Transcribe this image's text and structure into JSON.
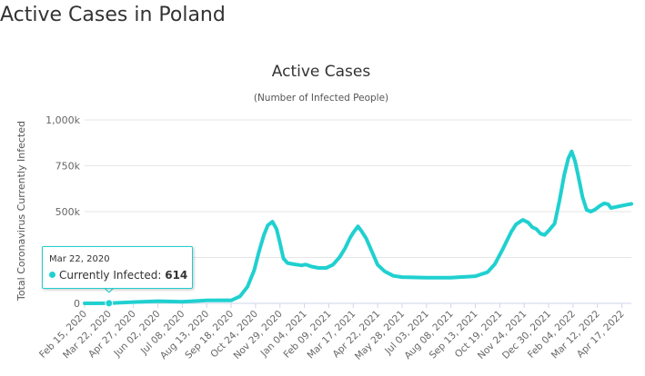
{
  "page": {
    "heading": "Active Cases in Poland"
  },
  "tooltip": {
    "date": "Mar 22, 2020",
    "series": "Currently Infected",
    "value": "614",
    "color": "#20d0d0"
  },
  "chart_data": {
    "type": "line",
    "title": "Active Cases",
    "subtitle": "(Number of Infected People)",
    "xlabel": "",
    "ylabel": "Total Coronavirus Currently Infected",
    "x_start": "2020-02-15",
    "x_end": "2022-05-01",
    "ylim": [
      0,
      1000000
    ],
    "y_ticks": [
      {
        "value": 0,
        "label": "0"
      },
      {
        "value": 250000,
        "label": "250k"
      },
      {
        "value": 500000,
        "label": "500k"
      },
      {
        "value": 750000,
        "label": "750k"
      },
      {
        "value": 1000000,
        "label": "1,000k"
      }
    ],
    "x_tick_labels": [
      {
        "date": "2020-02-15",
        "label": "Feb 15, 2020"
      },
      {
        "date": "2020-03-22",
        "label": "Mar 22, 2020"
      },
      {
        "date": "2020-04-27",
        "label": "Apr 27, 2020"
      },
      {
        "date": "2020-06-02",
        "label": "Jun 02, 2020"
      },
      {
        "date": "2020-07-08",
        "label": "Jul 08, 2020"
      },
      {
        "date": "2020-08-13",
        "label": "Aug 13, 2020"
      },
      {
        "date": "2020-09-18",
        "label": "Sep 18, 2020"
      },
      {
        "date": "2020-10-24",
        "label": "Oct 24, 2020"
      },
      {
        "date": "2020-11-29",
        "label": "Nov 29, 2020"
      },
      {
        "date": "2021-01-04",
        "label": "Jan 04, 2021"
      },
      {
        "date": "2021-02-09",
        "label": "Feb 09, 2021"
      },
      {
        "date": "2021-03-17",
        "label": "Mar 17, 2021"
      },
      {
        "date": "2021-04-22",
        "label": "Apr 22, 2021"
      },
      {
        "date": "2021-05-28",
        "label": "May 28, 2021"
      },
      {
        "date": "2021-07-03",
        "label": "Jul 03, 2021"
      },
      {
        "date": "2021-08-08",
        "label": "Aug 08, 2021"
      },
      {
        "date": "2021-09-13",
        "label": "Sep 13, 2021"
      },
      {
        "date": "2021-10-19",
        "label": "Oct 19, 2021"
      },
      {
        "date": "2021-11-24",
        "label": "Nov 24, 2021"
      },
      {
        "date": "2021-12-30",
        "label": "Dec 30, 2021"
      },
      {
        "date": "2022-02-04",
        "label": "Feb 04, 2022"
      },
      {
        "date": "2022-03-12",
        "label": "Mar 12, 2022"
      },
      {
        "date": "2022-04-17",
        "label": "Apr 17, 2022"
      }
    ],
    "series": [
      {
        "name": "Currently Infected",
        "color": "#20d0d0",
        "points": [
          [
            "2020-02-15",
            0
          ],
          [
            "2020-03-22",
            614
          ],
          [
            "2020-04-27",
            7000
          ],
          [
            "2020-06-02",
            12000
          ],
          [
            "2020-07-08",
            9000
          ],
          [
            "2020-08-13",
            16000
          ],
          [
            "2020-09-12",
            17000
          ],
          [
            "2020-09-18",
            16000
          ],
          [
            "2020-10-01",
            38000
          ],
          [
            "2020-10-12",
            90000
          ],
          [
            "2020-10-22",
            180000
          ],
          [
            "2020-10-29",
            280000
          ],
          [
            "2020-11-05",
            370000
          ],
          [
            "2020-11-11",
            425000
          ],
          [
            "2020-11-18",
            445000
          ],
          [
            "2020-11-24",
            405000
          ],
          [
            "2020-11-29",
            330000
          ],
          [
            "2020-12-04",
            245000
          ],
          [
            "2020-12-10",
            220000
          ],
          [
            "2020-12-20",
            213000
          ],
          [
            "2020-12-31",
            207000
          ],
          [
            "2021-01-06",
            212000
          ],
          [
            "2021-01-15",
            200000
          ],
          [
            "2021-01-25",
            193000
          ],
          [
            "2021-02-05",
            193000
          ],
          [
            "2021-02-15",
            210000
          ],
          [
            "2021-02-25",
            252000
          ],
          [
            "2021-03-05",
            300000
          ],
          [
            "2021-03-12",
            355000
          ],
          [
            "2021-03-17",
            385000
          ],
          [
            "2021-03-24",
            420000
          ],
          [
            "2021-03-29",
            395000
          ],
          [
            "2021-04-05",
            355000
          ],
          [
            "2021-04-15",
            270000
          ],
          [
            "2021-04-22",
            210000
          ],
          [
            "2021-05-02",
            175000
          ],
          [
            "2021-05-15",
            150000
          ],
          [
            "2021-05-28",
            143000
          ],
          [
            "2021-07-03",
            140000
          ],
          [
            "2021-08-08",
            140000
          ],
          [
            "2021-09-13",
            148000
          ],
          [
            "2021-10-01",
            170000
          ],
          [
            "2021-10-12",
            215000
          ],
          [
            "2021-10-24",
            300000
          ],
          [
            "2021-11-05",
            390000
          ],
          [
            "2021-11-12",
            430000
          ],
          [
            "2021-11-22",
            455000
          ],
          [
            "2021-11-30",
            440000
          ],
          [
            "2021-12-06",
            415000
          ],
          [
            "2021-12-12",
            405000
          ],
          [
            "2021-12-18",
            380000
          ],
          [
            "2021-12-24",
            373000
          ],
          [
            "2021-12-31",
            400000
          ],
          [
            "2022-01-08",
            435000
          ],
          [
            "2022-01-15",
            560000
          ],
          [
            "2022-01-22",
            700000
          ],
          [
            "2022-01-28",
            790000
          ],
          [
            "2022-02-02",
            828000
          ],
          [
            "2022-02-07",
            775000
          ],
          [
            "2022-02-12",
            690000
          ],
          [
            "2022-02-18",
            580000
          ],
          [
            "2022-02-24",
            510000
          ],
          [
            "2022-03-02",
            500000
          ],
          [
            "2022-03-08",
            510000
          ],
          [
            "2022-03-15",
            530000
          ],
          [
            "2022-03-22",
            545000
          ],
          [
            "2022-03-28",
            540000
          ],
          [
            "2022-04-01",
            520000
          ],
          [
            "2022-04-08",
            525000
          ],
          [
            "2022-04-17",
            532000
          ],
          [
            "2022-04-25",
            538000
          ],
          [
            "2022-05-01",
            542000
          ]
        ]
      }
    ],
    "grid": true,
    "legend": "none"
  }
}
